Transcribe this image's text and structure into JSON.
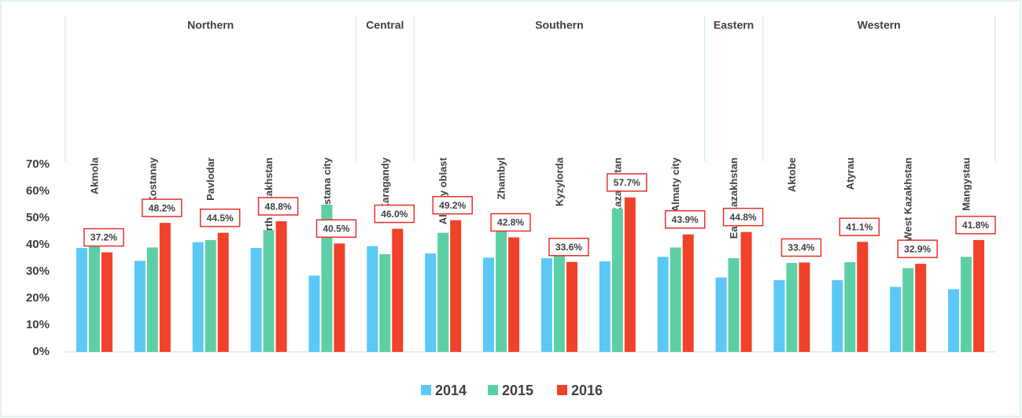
{
  "chart_data": {
    "type": "bar",
    "categories": [
      "Akmola",
      "Kostanay",
      "Pavlodar",
      "North Kazakhstan",
      "Astana city",
      "Karagandy",
      "Almaty oblast",
      "Zhambyl",
      "Kyzylorda",
      "South Kazakhstan",
      "Almaty city",
      "East Kazakhstan",
      "Aktobe",
      "Atyrau",
      "West Kazakhstan",
      "Mangystau"
    ],
    "groups": [
      {
        "label": "Northern",
        "count": 5
      },
      {
        "label": "Central",
        "count": 1
      },
      {
        "label": "Southern",
        "count": 5
      },
      {
        "label": "Eastern",
        "count": 1
      },
      {
        "label": "Western",
        "count": 4
      }
    ],
    "series": [
      {
        "name": "2014",
        "color": "#5bc8f5",
        "values": [
          38.8,
          34,
          41,
          38.8,
          28.5,
          39.5,
          36.8,
          35.2,
          35,
          33.8,
          35.5,
          27.8,
          26.8,
          26.8,
          24.3,
          23.4
        ]
      },
      {
        "name": "2015",
        "color": "#5dcfa4",
        "values": [
          44,
          39,
          41.8,
          45.5,
          55,
          36.5,
          44.5,
          46,
          40.9,
          53.5,
          39,
          35,
          33.2,
          33.5,
          31.3,
          35.5
        ]
      },
      {
        "name": "2016",
        "color": "#f0412a",
        "values": [
          37.2,
          48.2,
          44.5,
          48.8,
          40.5,
          46.0,
          49.2,
          42.8,
          33.6,
          57.7,
          43.9,
          44.8,
          33.4,
          41.1,
          32.9,
          41.8
        ],
        "value_labels": [
          "37.2%",
          "48.2%",
          "44.5%",
          "48.8%",
          "40.5%",
          "46.0%",
          "49.2%",
          "42.8%",
          "33.6%",
          "57.7%",
          "43.9%",
          "44.8%",
          "33.4%",
          "41.1%",
          "32.9%",
          "41.8%"
        ]
      }
    ],
    "ylim": [
      0,
      70
    ],
    "yticks": [
      {
        "value": 0,
        "label": "0%"
      },
      {
        "value": 10,
        "label": "10%"
      },
      {
        "value": 20,
        "label": "20%"
      },
      {
        "value": 30,
        "label": "30%"
      },
      {
        "value": 40,
        "label": "40%"
      },
      {
        "value": 50,
        "label": "50%"
      },
      {
        "value": 60,
        "label": "60%"
      },
      {
        "value": 70,
        "label": "70%"
      }
    ],
    "legend": "bottom"
  }
}
